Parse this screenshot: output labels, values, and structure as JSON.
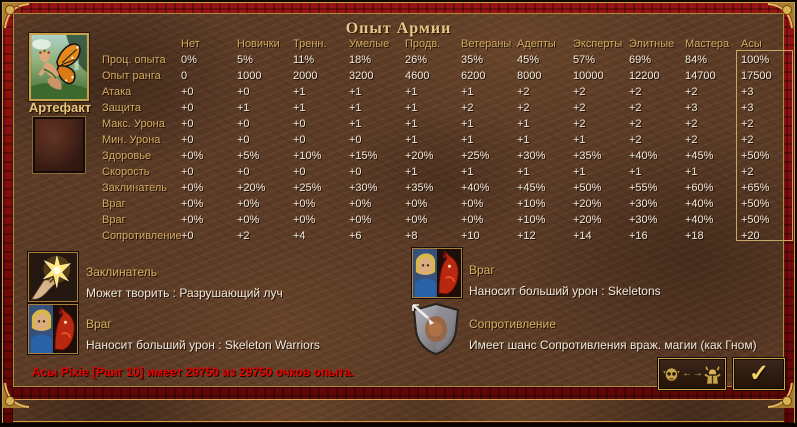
{
  "title": "Опыт Армии",
  "artifact_label": "Артефакт",
  "table": {
    "columns": [
      "Нет",
      "Новички",
      "Тренн.",
      "Умелые",
      "Продв.",
      "Ветераны",
      "Адепты",
      "Эксперты",
      "Элитные",
      "Мастера",
      "Асы"
    ],
    "highlighted_column": "Асы",
    "rows": [
      {
        "label": "Проц. опыта",
        "values": [
          "0%",
          "5%",
          "11%",
          "18%",
          "26%",
          "35%",
          "45%",
          "57%",
          "69%",
          "84%",
          "100%"
        ]
      },
      {
        "label": "Опыт ранга",
        "values": [
          "0",
          "1000",
          "2000",
          "3200",
          "4600",
          "6200",
          "8000",
          "10000",
          "12200",
          "14700",
          "17500"
        ]
      },
      {
        "label": "Атака",
        "values": [
          "+0",
          "+0",
          "+1",
          "+1",
          "+1",
          "+1",
          "+2",
          "+2",
          "+2",
          "+2",
          "+3"
        ]
      },
      {
        "label": "Защита",
        "values": [
          "+0",
          "+1",
          "+1",
          "+1",
          "+1",
          "+2",
          "+2",
          "+2",
          "+2",
          "+3",
          "+3"
        ]
      },
      {
        "label": "Макс. Урона",
        "values": [
          "+0",
          "+0",
          "+0",
          "+1",
          "+1",
          "+1",
          "+1",
          "+2",
          "+2",
          "+2",
          "+2"
        ]
      },
      {
        "label": "Мин. Урона",
        "values": [
          "+0",
          "+0",
          "+0",
          "+0",
          "+1",
          "+1",
          "+1",
          "+1",
          "+2",
          "+2",
          "+2"
        ]
      },
      {
        "label": "Здоровье",
        "values": [
          "+0%",
          "+5%",
          "+10%",
          "+15%",
          "+20%",
          "+25%",
          "+30%",
          "+35%",
          "+40%",
          "+45%",
          "+50%"
        ]
      },
      {
        "label": "Скорость",
        "values": [
          "+0",
          "+0",
          "+0",
          "+0",
          "+1",
          "+1",
          "+1",
          "+1",
          "+1",
          "+1",
          "+2"
        ]
      },
      {
        "label": "Заклинатель",
        "values": [
          "+0%",
          "+20%",
          "+25%",
          "+30%",
          "+35%",
          "+40%",
          "+45%",
          "+50%",
          "+55%",
          "+60%",
          "+65%"
        ]
      },
      {
        "label": "Враг",
        "values": [
          "+0%",
          "+0%",
          "+0%",
          "+0%",
          "+0%",
          "+0%",
          "+10%",
          "+20%",
          "+30%",
          "+40%",
          "+50%"
        ]
      },
      {
        "label": "Враг",
        "values": [
          "+0%",
          "+0%",
          "+0%",
          "+0%",
          "+0%",
          "+0%",
          "+10%",
          "+20%",
          "+30%",
          "+40%",
          "+50%"
        ]
      },
      {
        "label": "Сопротивление",
        "values": [
          "+0",
          "+2",
          "+4",
          "+6",
          "+8",
          "+10",
          "+12",
          "+14",
          "+16",
          "+18",
          "+20"
        ]
      }
    ]
  },
  "abilities": [
    {
      "name": "Заклинатель",
      "description": "Может творить : Разрушающий луч",
      "icon": "spellcaster-hand-icon"
    },
    {
      "name": "Враг",
      "description": "Наносит больший урон : Skeleton Warriors",
      "icon": "enemy-faces-icon"
    },
    {
      "name": "Враг",
      "description": "Наносит больший урон : Skeletons",
      "icon": "enemy-faces-icon"
    },
    {
      "name": "Сопротивление",
      "description": "Имеет шанс Сопротивления враж. магии (как Гном)",
      "icon": "resistance-shield-icon"
    }
  ],
  "status_text": "Асы Pixie [Ранг 10] имеет 29750 из 29750 очков опыта.",
  "buttons": {
    "switch": {
      "arrows": "← →",
      "icons": [
        "goblin-head-icon",
        "swap-arrows-icon",
        "armored-warrior-icon"
      ]
    },
    "ok": {
      "glyph": "✓",
      "icon": "checkmark-icon"
    }
  },
  "colors": {
    "accent_gold": "#d4ac5e",
    "value_text": "#f2ead8",
    "title_gold": "#e6c889",
    "status_red": "#e60000",
    "frame_red": "#7e0e0e",
    "leather_brown": "#5b3b26"
  }
}
